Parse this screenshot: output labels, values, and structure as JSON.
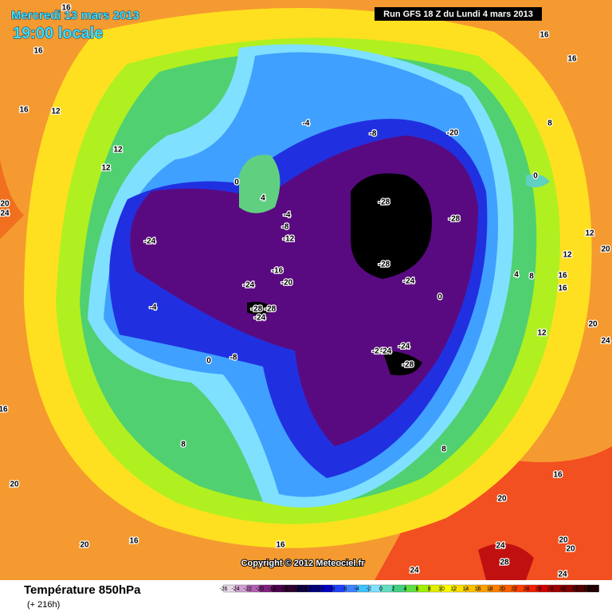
{
  "header": {
    "date": "Mercredi 13 mars 2013",
    "time": "19:00 locale",
    "run": "Run GFS 18 Z du Lundi 4 mars 2013"
  },
  "copyright": "Copyright © 2012 Meteociel.fr",
  "footer": {
    "title": "Température 850hPa",
    "lead": "(+ 216h)"
  },
  "legend": {
    "ticks": [
      -26,
      -24,
      -22,
      -20,
      -18,
      -16,
      -14,
      -12,
      -10,
      -8,
      -6,
      -4,
      -2,
      0,
      2,
      4,
      6,
      8,
      10,
      12,
      14,
      16,
      18,
      20,
      22,
      24,
      26,
      28,
      30,
      32,
      34
    ],
    "colors": [
      "#e8d8e8",
      "#d0a0d0",
      "#b060b0",
      "#802080",
      "#500050",
      "#300030",
      "#100040",
      "#000080",
      "#0000c0",
      "#2040ff",
      "#4080ff",
      "#40c0ff",
      "#80e0ff",
      "#60e0c0",
      "#40d080",
      "#60e040",
      "#a0f000",
      "#e0f000",
      "#ffff00",
      "#ffe000",
      "#ffc000",
      "#ffa000",
      "#ff8000",
      "#ff6000",
      "#ff4000",
      "#f02000",
      "#d00000",
      "#a00000",
      "#800000",
      "#500000",
      "#200000"
    ]
  },
  "map_labels": [
    16,
    16,
    16,
    16,
    16,
    12,
    12,
    12,
    20,
    24,
    -4,
    -8,
    -20,
    8,
    0,
    0,
    4,
    -4,
    -8,
    -12,
    -28,
    -28,
    -24,
    12,
    20,
    12,
    -28,
    -16,
    -20,
    4,
    8,
    16,
    16,
    -24,
    -24,
    0,
    -4,
    -28,
    -28,
    -24,
    20,
    12,
    24,
    -24,
    -24,
    -24,
    -28,
    0,
    -8,
    16,
    8,
    8,
    16,
    20,
    20,
    20,
    16,
    16,
    20,
    24,
    20,
    28,
    24,
    24
  ]
}
